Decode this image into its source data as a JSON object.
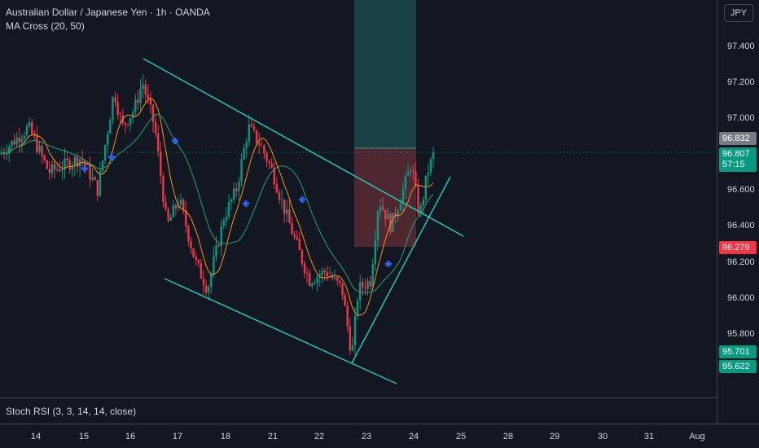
{
  "legend": {
    "title": "Australian Dollar / Japanese Yen · 1h · OANDA",
    "indicator": "MA Cross (20, 50)"
  },
  "price_axis": {
    "currency": "JPY",
    "ticks": [
      "97.400",
      "97.200",
      "97.000",
      "96.600",
      "96.400",
      "96.200",
      "96.000",
      "95.800"
    ],
    "tags": {
      "target": "96.832",
      "last": "96.807",
      "countdown": "57:15",
      "stop": "96.279",
      "entry_low": "95.701",
      "entry_low2": "95.622"
    },
    "colors": {
      "target": "#787b86",
      "last": "#089981",
      "stop": "#f23645",
      "low": "#089981"
    }
  },
  "indicator_pane": {
    "label": "Stoch RSI (3, 3, 14, 14, close)"
  },
  "time_axis": {
    "labels": [
      "14",
      "15",
      "16",
      "17",
      "18",
      "21",
      "22",
      "23",
      "24",
      "25",
      "28",
      "29",
      "30",
      "31",
      "Aug"
    ]
  },
  "colors": {
    "background": "#131722",
    "up": "#089981",
    "down": "#f23645",
    "ma_fast": "#f7931a",
    "ma_slow": "#26a17b",
    "trendline": "#26c6b0",
    "cross_marker": "#2962ff",
    "profit_zone": "#1b4a4a",
    "loss_zone": "#5a2a32"
  }
}
